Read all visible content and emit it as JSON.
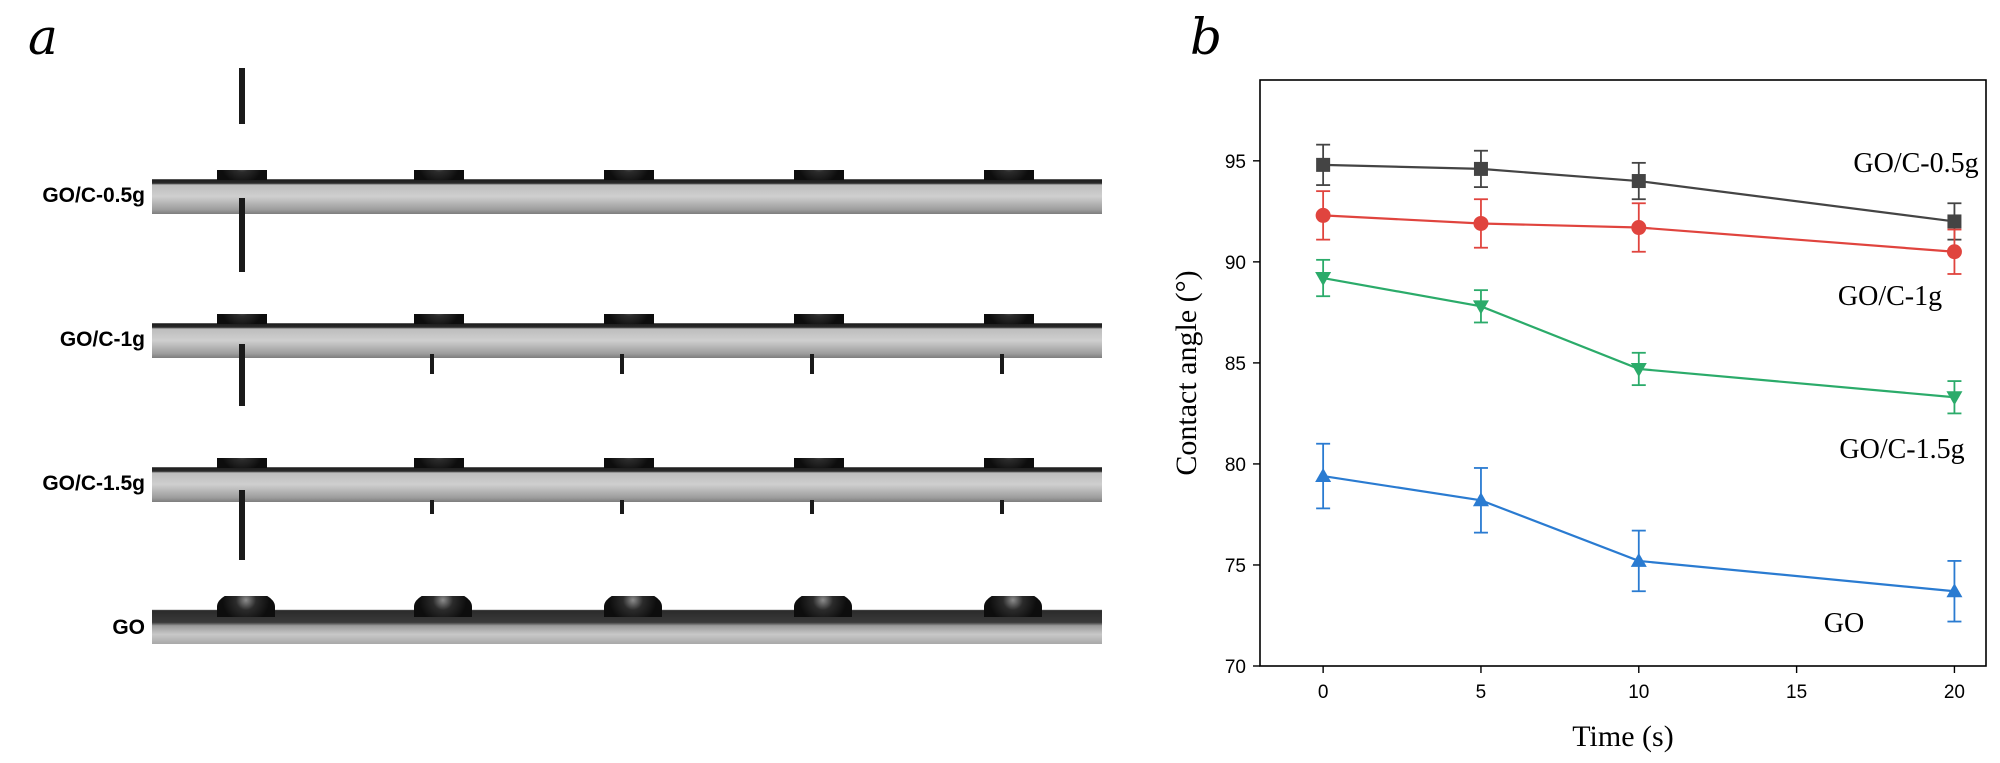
{
  "panel_a": {
    "letter": "a",
    "rows": [
      {
        "label": "GO/C-0.5g"
      },
      {
        "label": "GO/C-1g"
      },
      {
        "label": "GO/C-1.5g"
      },
      {
        "label": "GO"
      }
    ]
  },
  "panel_b": {
    "letter": "b"
  },
  "chart_data": {
    "type": "line",
    "xlabel": "Time (s)",
    "ylabel": "Contact angle (°)",
    "x": [
      0,
      5,
      10,
      20
    ],
    "xlim": [
      -2,
      21
    ],
    "ylim": [
      70,
      99
    ],
    "xticks": [
      0,
      5,
      10,
      15,
      20
    ],
    "yticks": [
      70,
      75,
      80,
      85,
      90,
      95
    ],
    "grid": false,
    "series": [
      {
        "name": "GO/C-0.5g",
        "color": "#444444",
        "marker": "square",
        "values": [
          94.8,
          94.6,
          94.0,
          92.0
        ],
        "errors": [
          1.0,
          0.9,
          0.9,
          0.9
        ]
      },
      {
        "name": "GO/C-1g",
        "color": "#e0443e",
        "marker": "circle",
        "values": [
          92.3,
          91.9,
          91.7,
          90.5
        ],
        "errors": [
          1.2,
          1.2,
          1.2,
          1.1
        ]
      },
      {
        "name": "GO/C-1.5g",
        "color": "#2bab6a",
        "marker": "triangle-down",
        "values": [
          89.2,
          87.8,
          84.7,
          83.3
        ],
        "errors": [
          0.9,
          0.8,
          0.8,
          0.8
        ]
      },
      {
        "name": "GO",
        "color": "#2a7bd1",
        "marker": "triangle-up",
        "values": [
          79.4,
          78.2,
          75.2,
          73.7
        ],
        "errors": [
          1.6,
          1.6,
          1.5,
          1.5
        ]
      }
    ]
  }
}
